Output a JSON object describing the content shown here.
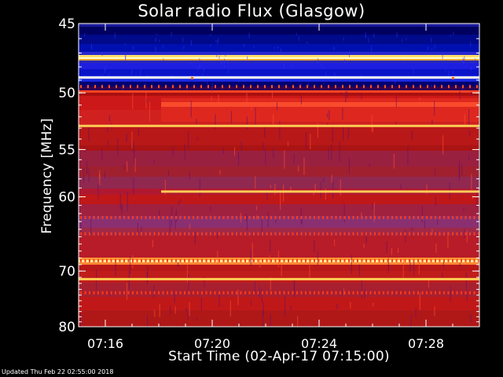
{
  "chart_data": {
    "type": "heatmap",
    "title": "Solar radio Flux (Glasgow)",
    "xlabel": "Start Time (02-Apr-17 07:15:00)",
    "ylabel": "Frequency [MHz]",
    "x_ticks": [
      "07:16",
      "07:20",
      "07:24",
      "07:28"
    ],
    "x_tick_minutes": [
      1,
      5,
      9,
      13
    ],
    "x_range_minutes": [
      0,
      15
    ],
    "y_ticks": [
      45,
      50,
      55,
      60,
      70,
      80
    ],
    "y_range_mhz": [
      45,
      80
    ],
    "y_scale": "reciprocal",
    "colors": {
      "low": "#00008b",
      "mid": "#cc0000",
      "high": "#ffff88",
      "axis": "#ffffff",
      "background": "#000000"
    },
    "bright_lines_mhz": [
      48.8,
      52.8,
      59.4,
      71.3
    ],
    "dashed_lines_mhz": [
      49.5,
      62.5,
      64.6,
      68.4,
      73.6
    ]
  },
  "footer": "Updated Thu Feb 22 02:55:00 2018"
}
